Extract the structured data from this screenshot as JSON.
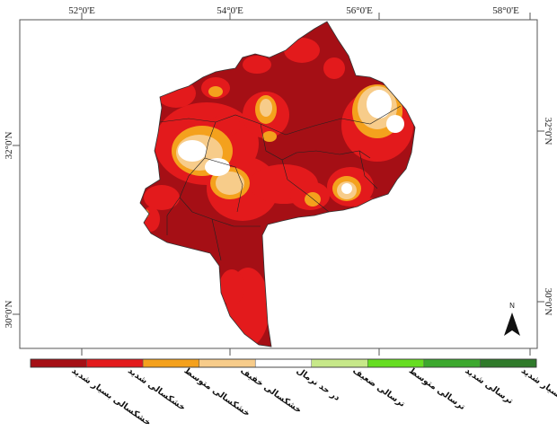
{
  "map": {
    "lon_labels": [
      "52°0'E",
      "54°0'E",
      "56°0'E",
      "58°0'E"
    ],
    "lat_labels": [
      "32°0'N",
      "30°0'N"
    ],
    "north_label": "N"
  },
  "legend": {
    "classes": [
      {
        "label": "خشکسالی بسیار شدید",
        "color": "#a50f15"
      },
      {
        "label": "خشکسالی شدید",
        "color": "#e31a1c"
      },
      {
        "label": "خشکسالی متوسط",
        "color": "#f4a11d"
      },
      {
        "label": "خشکسالی خفیف",
        "color": "#f7cc8a"
      },
      {
        "label": "در حد نرمال",
        "color": "#ffffff"
      },
      {
        "label": "ترسالی ضعیف",
        "color": "#c7e889"
      },
      {
        "label": "ترسالی متوسط",
        "color": "#66dd22"
      },
      {
        "label": "ترسالی شدید",
        "color": "#3ca82e"
      },
      {
        "label": "ترسالی بسیار شدید",
        "color": "#2f7a2a"
      }
    ]
  },
  "colors": {
    "frame": "#555555",
    "border": "#333333"
  }
}
